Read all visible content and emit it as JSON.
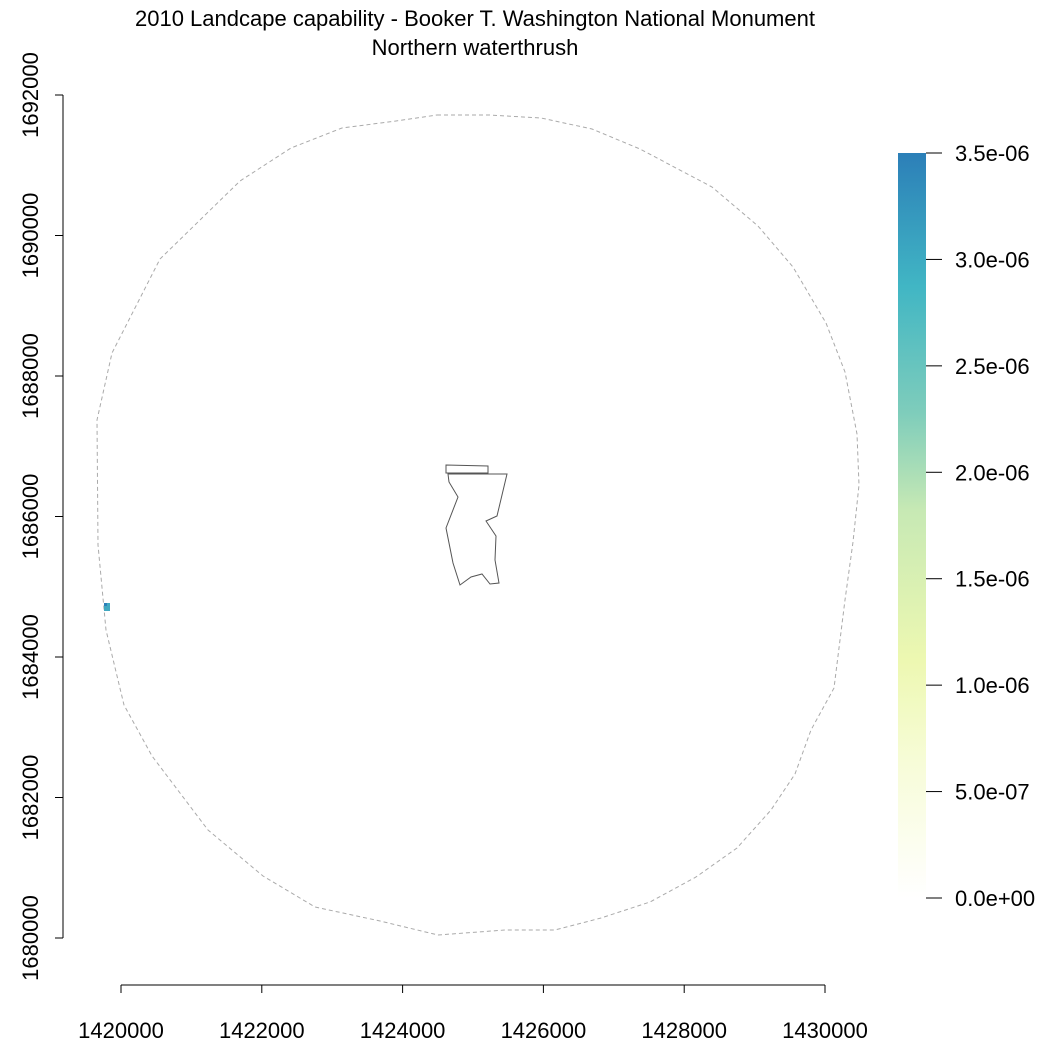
{
  "title": "2010 Landcape capability - Booker T. Washington National Monument",
  "subtitle": "Northern waterthrush",
  "map": {
    "x_ticks": [
      "1420000",
      "1422000",
      "1424000",
      "1426000",
      "1428000",
      "1430000"
    ],
    "y_ticks": [
      "1680000",
      "1682000",
      "1684000",
      "1686000",
      "1688000",
      "1690000",
      "1692000"
    ],
    "x_range": [
      1419000,
      1430300
    ],
    "y_range": [
      1679200,
      1692800
    ],
    "boundary_style": "dashed gray circle (buffer)",
    "park_outline": "solid thin gray polygon",
    "raster_cell": {
      "x": 1419750,
      "y": 1684700,
      "value": 2.9e-06
    }
  },
  "legend": {
    "labels": [
      "3.5e-06",
      "3.0e-06",
      "2.5e-06",
      "2.0e-06",
      "1.5e-06",
      "1.0e-06",
      "5.0e-07",
      "0.0e+00"
    ],
    "max_value": 3.5e-06,
    "min_value": 0,
    "colors": [
      "#ffffff",
      "#f7fcd8",
      "#edf8b1",
      "#c7e9b4",
      "#7fcdbb",
      "#41b6c4",
      "#2c7fb8"
    ]
  }
}
